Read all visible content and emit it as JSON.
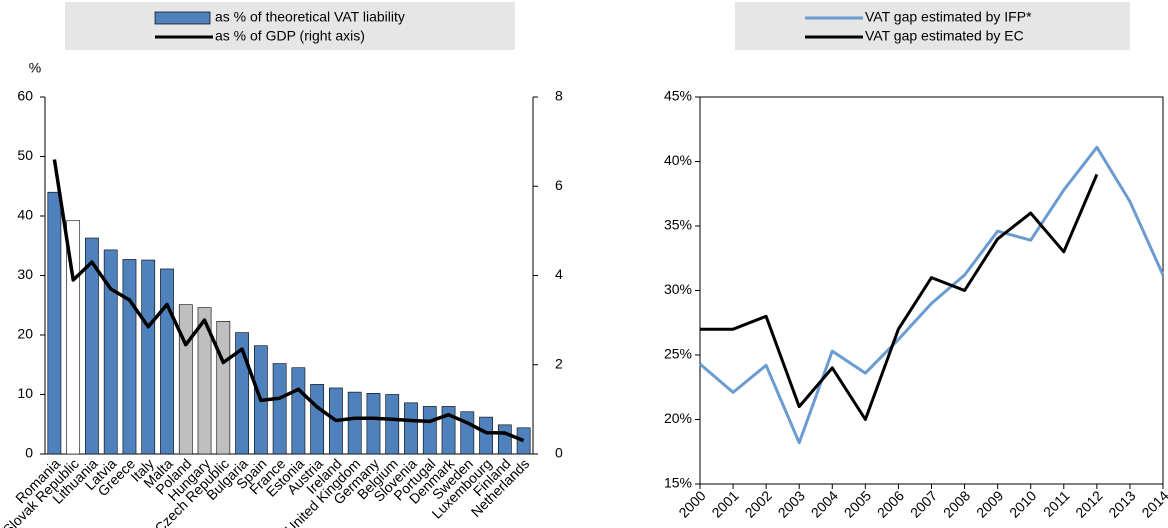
{
  "chart_data": [
    {
      "type": "bar",
      "categories": [
        "Romania",
        "Slovak Republic",
        "Lithuania",
        "Latvia",
        "Greece",
        "Italy",
        "Malta",
        "Poland",
        "Hungary",
        "Czech Republic",
        "Bulgaria",
        "Spain",
        "France",
        "Estonia",
        "Austria",
        "Ireland",
        "United Kingdom",
        "Germany",
        "Belgium",
        "Slovenia",
        "Portugal",
        "Denmark",
        "Sweden",
        "Luxembourg",
        "Finland",
        "Netherlands"
      ],
      "series": [
        {
          "name": "as % of theoretical VAT liability",
          "type": "bar",
          "color": "#4f81bd",
          "colors": [
            "#4f81bd",
            "#ffffff",
            "#4f81bd",
            "#4f81bd",
            "#4f81bd",
            "#4f81bd",
            "#4f81bd",
            "#bfbfbf",
            "#bfbfbf",
            "#bfbfbf",
            "#4f81bd",
            "#4f81bd",
            "#4f81bd",
            "#4f81bd",
            "#4f81bd",
            "#4f81bd",
            "#4f81bd",
            "#4f81bd",
            "#4f81bd",
            "#4f81bd",
            "#4f81bd",
            "#4f81bd",
            "#4f81bd",
            "#4f81bd",
            "#4f81bd",
            "#4f81bd"
          ],
          "values": [
            44,
            39.2,
            36.3,
            34.3,
            32.7,
            32.6,
            31.1,
            25.1,
            24.6,
            22.3,
            20.4,
            18.2,
            15.2,
            14.5,
            11.7,
            11.1,
            10.4,
            10.2,
            10.0,
            8.6,
            8.0,
            8.0,
            7.1,
            6.2,
            4.9,
            4.4
          ]
        },
        {
          "name": "as % of GDP (right axis)",
          "type": "line",
          "axis": "y2",
          "color": "#000000",
          "values": [
            6.6,
            3.9,
            4.3,
            3.7,
            3.45,
            2.85,
            3.35,
            2.45,
            3.0,
            2.05,
            2.35,
            1.2,
            1.25,
            1.45,
            1.05,
            0.75,
            0.8,
            0.8,
            0.78,
            0.75,
            0.73,
            0.88,
            0.7,
            0.48,
            0.47,
            0.3
          ]
        }
      ],
      "y_label": "%",
      "ylim": [
        0,
        60
      ],
      "yticks": [
        0,
        10,
        20,
        30,
        40,
        50,
        60
      ],
      "y2lim": [
        0,
        8
      ],
      "y2ticks": [
        0,
        2,
        4,
        6,
        8
      ],
      "legend": "top"
    },
    {
      "type": "line",
      "x": [
        2000,
        2001,
        2002,
        2003,
        2004,
        2005,
        2006,
        2007,
        2008,
        2009,
        2010,
        2011,
        2012,
        2013,
        2014
      ],
      "series": [
        {
          "name": "VAT gap estimated by IFP*",
          "color": "#6a9bd1",
          "values": [
            24.3,
            22.1,
            24.2,
            18.2,
            25.3,
            23.6,
            26.2,
            29.0,
            31.2,
            34.6,
            33.9,
            37.8,
            41.1,
            36.9,
            31.2
          ]
        },
        {
          "name": "VAT gap estimated by EC",
          "color": "#000000",
          "values": [
            27,
            27,
            28,
            21,
            24,
            20,
            27,
            31,
            30,
            34,
            36,
            33,
            39,
            null,
            null
          ]
        }
      ],
      "xlim": [
        2000,
        2014
      ],
      "xticks": [
        2000,
        2001,
        2002,
        2003,
        2004,
        2005,
        2006,
        2007,
        2008,
        2009,
        2010,
        2011,
        2012,
        2013,
        2014
      ],
      "ylim": [
        15,
        45
      ],
      "yticks": [
        {
          "value": 15,
          "label": "15%"
        },
        {
          "value": 20,
          "label": "20%"
        },
        {
          "value": 25,
          "label": "25%"
        },
        {
          "value": 30,
          "label": "30%"
        },
        {
          "value": 35,
          "label": "35%"
        },
        {
          "value": 40,
          "label": "40%"
        },
        {
          "value": 45,
          "label": "45%"
        }
      ],
      "legend": "top"
    }
  ]
}
